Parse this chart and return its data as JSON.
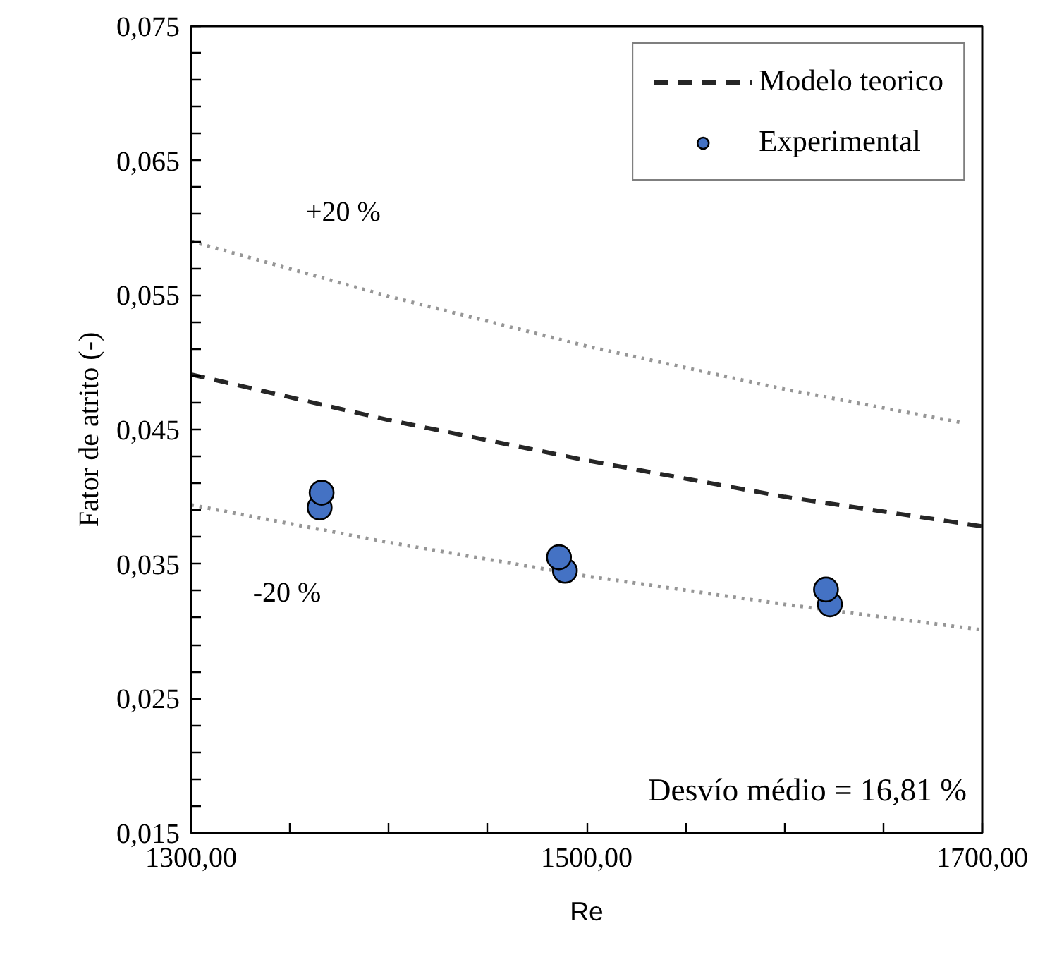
{
  "chart_data": {
    "type": "line",
    "xlabel": "Re",
    "ylabel": "Fator de atrito (-)",
    "xlim": [
      1300,
      1700
    ],
    "xticks": [
      {
        "value": 1300,
        "label": "1300,00"
      },
      {
        "value": 1350,
        "label": null
      },
      {
        "value": 1400,
        "label": null
      },
      {
        "value": 1450,
        "label": null
      },
      {
        "value": 1500,
        "label": "1500,00"
      },
      {
        "value": 1550,
        "label": null
      },
      {
        "value": 1600,
        "label": null
      },
      {
        "value": 1650,
        "label": null
      },
      {
        "value": 1700,
        "label": "1700,00"
      }
    ],
    "ylim": [
      0.015,
      0.075
    ],
    "yticks": [
      {
        "value": 0.015,
        "label": "0,015"
      },
      {
        "value": 0.017,
        "label": null
      },
      {
        "value": 0.019,
        "label": null
      },
      {
        "value": 0.021,
        "label": null
      },
      {
        "value": 0.023,
        "label": null
      },
      {
        "value": 0.025,
        "label": "0,025"
      },
      {
        "value": 0.027,
        "label": null
      },
      {
        "value": 0.029,
        "label": null
      },
      {
        "value": 0.031,
        "label": null
      },
      {
        "value": 0.033,
        "label": null
      },
      {
        "value": 0.035,
        "label": "0,035"
      },
      {
        "value": 0.037,
        "label": null
      },
      {
        "value": 0.039,
        "label": null
      },
      {
        "value": 0.041,
        "label": null
      },
      {
        "value": 0.043,
        "label": null
      },
      {
        "value": 0.045,
        "label": "0,045"
      },
      {
        "value": 0.047,
        "label": null
      },
      {
        "value": 0.049,
        "label": null
      },
      {
        "value": 0.051,
        "label": null
      },
      {
        "value": 0.053,
        "label": null
      },
      {
        "value": 0.055,
        "label": "0,055"
      },
      {
        "value": 0.057,
        "label": null
      },
      {
        "value": 0.059,
        "label": null
      },
      {
        "value": 0.061,
        "label": null
      },
      {
        "value": 0.063,
        "label": null
      },
      {
        "value": 0.065,
        "label": "0,065"
      },
      {
        "value": 0.067,
        "label": null
      },
      {
        "value": 0.069,
        "label": null
      },
      {
        "value": 0.071,
        "label": null
      },
      {
        "value": 0.073,
        "label": null
      },
      {
        "value": 0.075,
        "label": "0,075"
      }
    ],
    "grid": false,
    "legend": "top right",
    "series": [
      {
        "name": "Modelo teorico",
        "line_style": "dashed",
        "color": "#262626",
        "x": [
          1300,
          1400,
          1500,
          1600,
          1700
        ],
        "values": [
          0.0491,
          0.0457,
          0.0427,
          0.04,
          0.0378
        ]
      },
      {
        "line_style": "dotted",
        "color": "#969696",
        "x": [
          1300,
          1400,
          1500,
          1600,
          1690
        ],
        "values": [
          0.059,
          0.0549,
          0.0512,
          0.048,
          0.0455
        ]
      },
      {
        "line_style": "dotted",
        "color": "#969696",
        "x": [
          1300,
          1400,
          1500,
          1600,
          1700
        ],
        "values": [
          0.0394,
          0.0366,
          0.0341,
          0.032,
          0.0301
        ]
      },
      {
        "name": "Experimental",
        "type": "scatter",
        "marker": "circle",
        "color": "#4472c4",
        "x": [
          1365,
          1366,
          1489,
          1486,
          1623,
          1621
        ],
        "values": [
          0.0392,
          0.0403,
          0.0345,
          0.0355,
          0.032,
          0.0331
        ]
      }
    ],
    "annotations": [
      "+20 %",
      "-20 %",
      "Desvío médio = 16,81 %"
    ]
  }
}
